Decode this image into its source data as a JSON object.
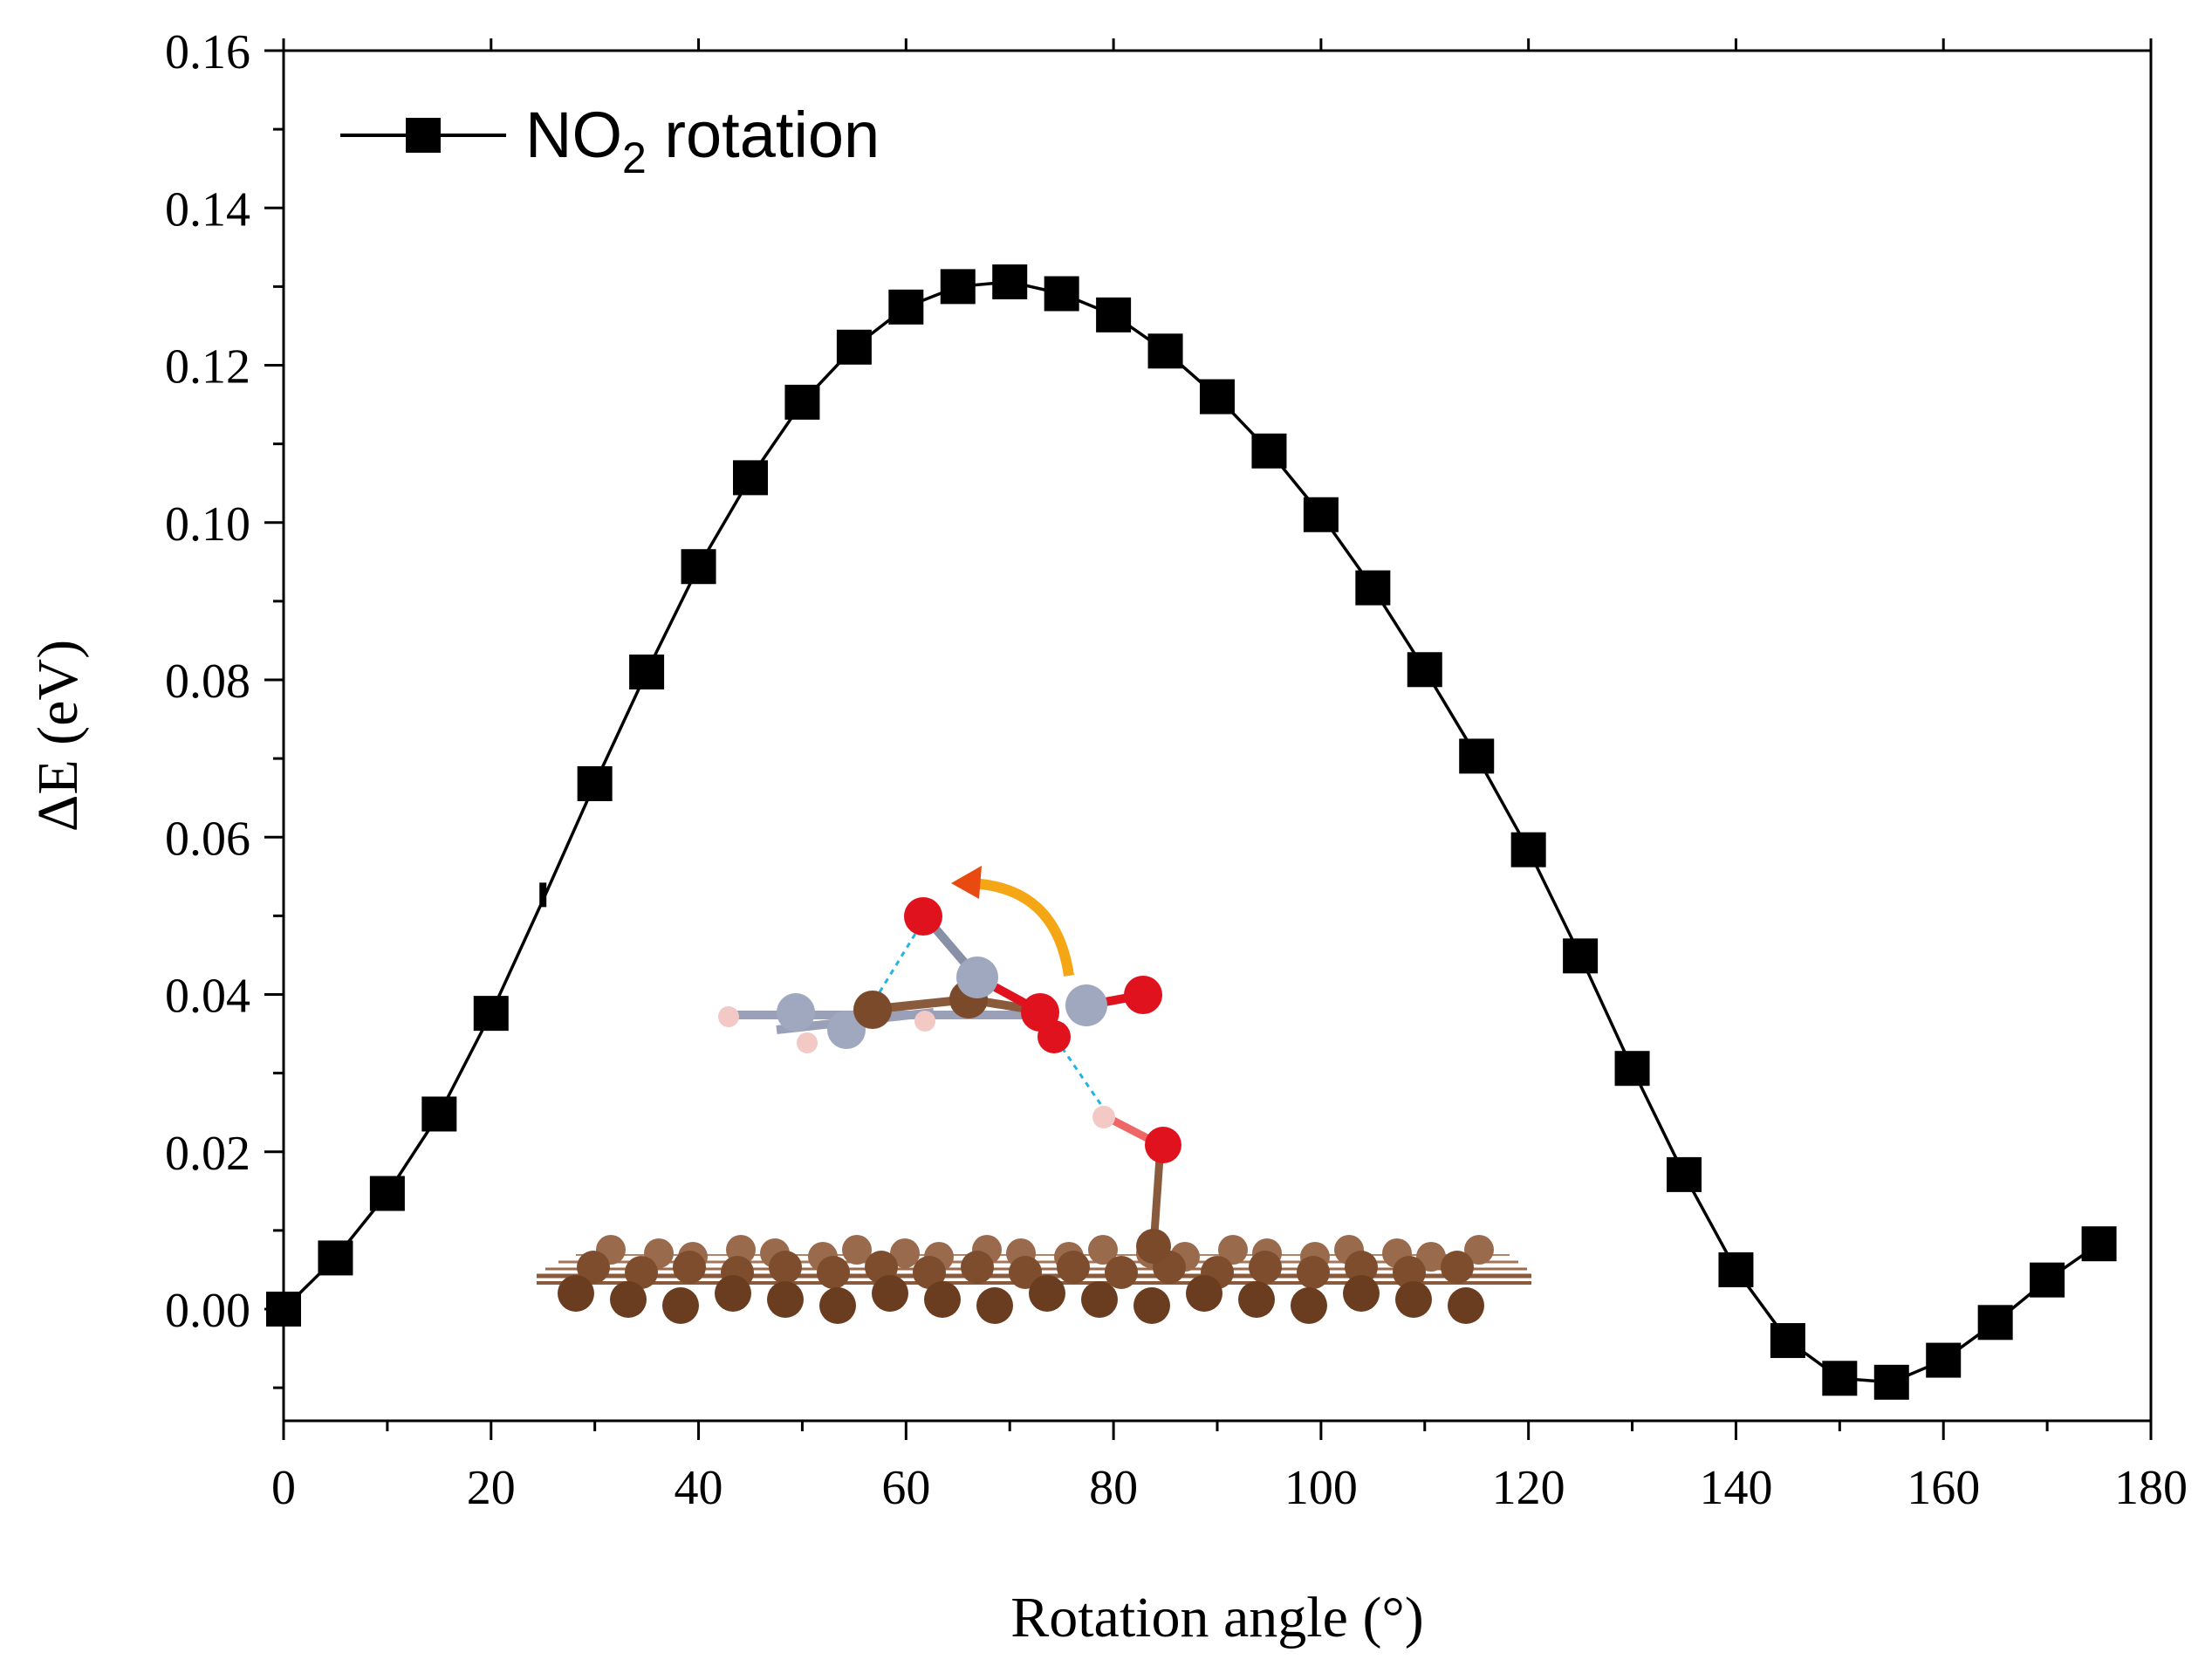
{
  "chart_data": {
    "type": "line",
    "title": "",
    "xlabel": "Rotation angle (°)",
    "ylabel": "ΔE (eV)",
    "xlim": [
      0,
      180
    ],
    "ylim": [
      -0.015,
      0.16
    ],
    "xticks": [
      0,
      20,
      40,
      60,
      80,
      100,
      120,
      140,
      160,
      180
    ],
    "xtick_labels": [
      "0",
      "20",
      "40",
      "60",
      "80",
      "100",
      "120",
      "140",
      "160",
      "180"
    ],
    "yticks": [
      0.0,
      0.02,
      0.04,
      0.06,
      0.08,
      0.1,
      0.12,
      0.14,
      0.16
    ],
    "ytick_labels": [
      "0.00",
      "0.02",
      "0.04",
      "0.06",
      "0.08",
      "0.10",
      "0.12",
      "0.14",
      "0.16"
    ],
    "legend": {
      "position": "top-left",
      "label_main": "NO",
      "label_sub": "2",
      "label_rest": " rotation"
    },
    "series": [
      {
        "name": "NO2 rotation",
        "marker": "square",
        "color": "#000000",
        "x": [
          0,
          5,
          10,
          15,
          20,
          25,
          30,
          35,
          40,
          45,
          50,
          55,
          60,
          65,
          70,
          75,
          80,
          85,
          90,
          95,
          100,
          105,
          110,
          115,
          120,
          125,
          130,
          135,
          140,
          145,
          150,
          155,
          160,
          165,
          170,
          175
        ],
        "y": [
          0.0,
          0.0065,
          0.0147,
          0.0248,
          0.0376,
          0.052,
          0.0668,
          0.081,
          0.0944,
          0.1057,
          0.1153,
          0.1223,
          0.1274,
          0.13,
          0.1306,
          0.1291,
          0.1264,
          0.1218,
          0.116,
          0.1091,
          0.101,
          0.0917,
          0.0813,
          0.0703,
          0.0584,
          0.0449,
          0.0306,
          0.0171,
          0.005,
          -0.004,
          -0.0088,
          -0.0093,
          -0.0065,
          -0.0017,
          0.0037,
          0.0083
        ]
      }
    ],
    "hidden_marker_index": 5,
    "grid": false
  },
  "inset": {
    "description_icon": "molecule-on-graphene-icon"
  }
}
